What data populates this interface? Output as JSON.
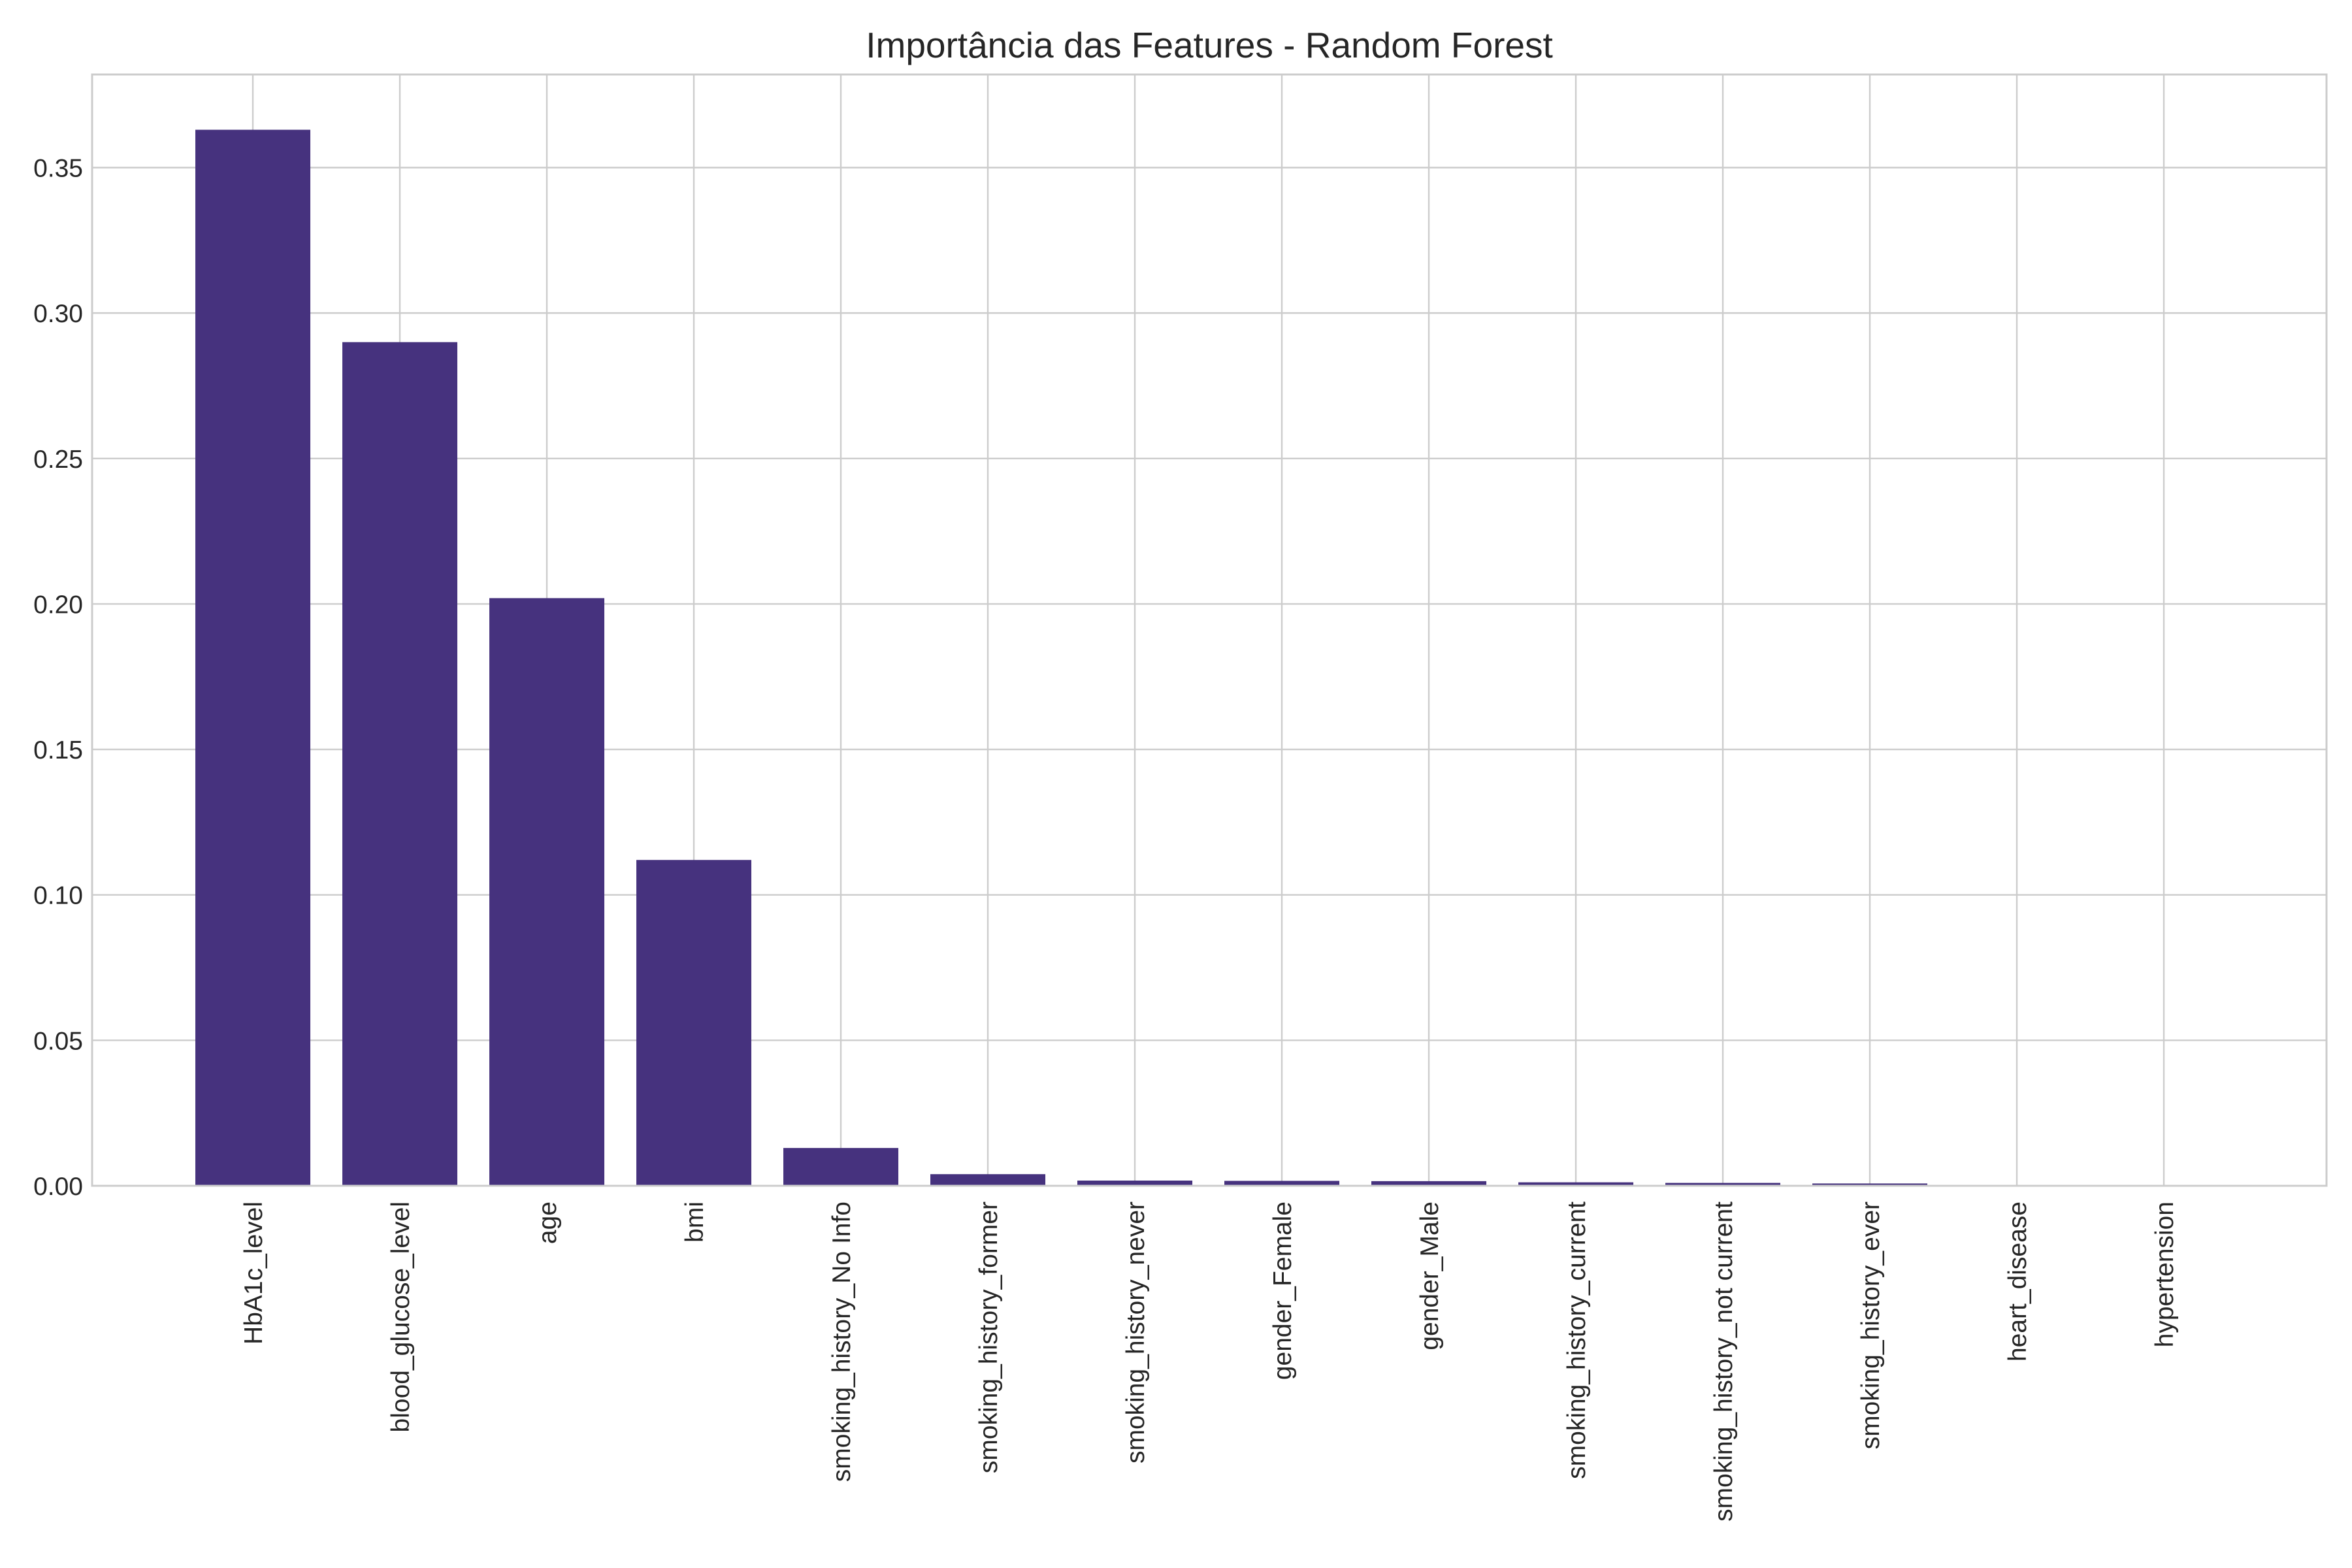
{
  "chart_data": {
    "type": "bar",
    "title": "Importância das Features - Random Forest",
    "xlabel": "",
    "ylabel": "",
    "categories": [
      "HbA1c_level",
      "blood_glucose_level",
      "age",
      "bmi",
      "smoking_history_No Info",
      "smoking_history_former",
      "smoking_history_never",
      "gender_Female",
      "gender_Male",
      "smoking_history_current",
      "smoking_history_not current",
      "smoking_history_ever",
      "heart_disease",
      "hypertension"
    ],
    "values": [
      0.363,
      0.29,
      0.202,
      0.112,
      0.013,
      0.004,
      0.0018,
      0.0017,
      0.0016,
      0.0012,
      0.001,
      0.0008,
      0.0,
      0.0
    ],
    "ylim": [
      0,
      0.382
    ],
    "yticks": [
      0.0,
      0.05,
      0.1,
      0.15,
      0.2,
      0.25,
      0.3,
      0.35
    ],
    "ytick_labels": [
      "0.00",
      "0.05",
      "0.10",
      "0.15",
      "0.20",
      "0.25",
      "0.30",
      "0.35"
    ],
    "grid": true,
    "bar_color": "#46327e"
  }
}
